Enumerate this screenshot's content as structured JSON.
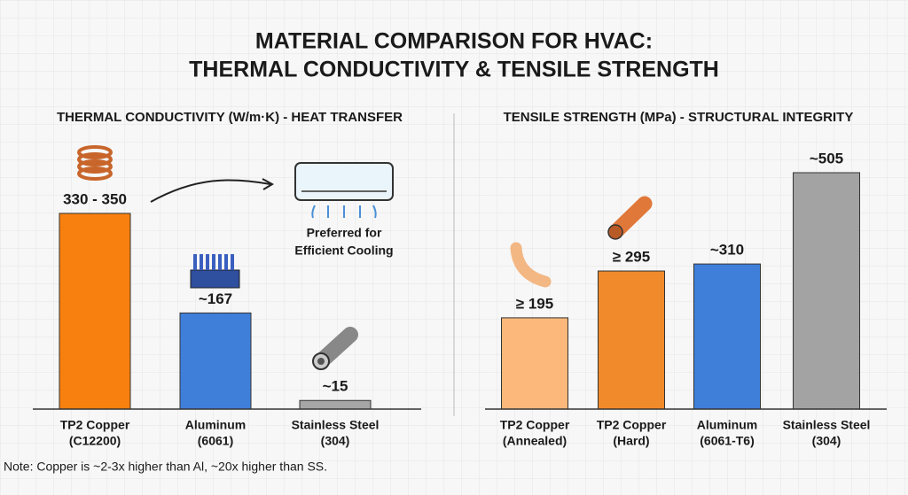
{
  "title": [
    "MATERIAL COMPARISON FOR HVAC:",
    "THERMAL CONDUCTIVITY & TENSILE STRENGTH"
  ],
  "chart_data": [
    {
      "type": "bar",
      "title": "THERMAL CONDUCTIVITY (W/m·K) - HEAT TRANSFER",
      "categories": [
        [
          "TP2 Copper",
          "(C12200)"
        ],
        [
          "Aluminum",
          "(6061)"
        ],
        [
          "Stainless Steel",
          "(304)"
        ]
      ],
      "values": [
        340,
        167,
        15
      ],
      "value_labels": [
        "330 - 350",
        "~167",
        "~15"
      ],
      "colors": [
        "#f7800f",
        "#3f7fd9",
        "#a6a6a6"
      ],
      "annotation": [
        "Preferred for",
        "Efficient Cooling"
      ]
    },
    {
      "type": "bar",
      "title": "TENSILE STRENGTH (MPa) - STRUCTURAL INTEGRITY",
      "categories": [
        [
          "TP2 Copper",
          "(Annealed)"
        ],
        [
          "TP2 Copper",
          "(Hard)"
        ],
        [
          "Aluminum",
          "(6061-T6)"
        ],
        [
          "Stainless Steel",
          "(304)"
        ]
      ],
      "values": [
        195,
        295,
        310,
        505
      ],
      "value_labels": [
        "≥ 195",
        "≥ 295",
        "~310",
        "~505"
      ],
      "colors": [
        "#fbb87a",
        "#f18a2b",
        "#3f7fd9",
        "#a3a3a3"
      ]
    }
  ],
  "note": "Note: Copper is ~2-3x higher than Al, ~20x higher than SS."
}
